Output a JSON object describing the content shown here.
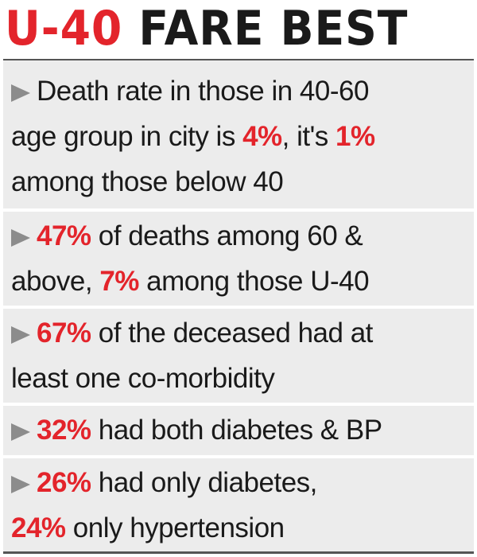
{
  "headline": {
    "accent": "U-40",
    "main": "FARE BEST"
  },
  "items": [
    {
      "lines": [
        {
          "t1": "Death rate in those in 40-60"
        },
        {
          "t1": "age group in city is ",
          "h1": "4%",
          "t2": ", it's ",
          "h2": "1%"
        },
        {
          "t1": "among those below 40"
        }
      ]
    },
    {
      "lines": [
        {
          "h1": "47%",
          "t1": " of deaths among 60 &"
        },
        {
          "t1": "above, ",
          "h1": "7%",
          "t2": " among those U-40"
        }
      ]
    },
    {
      "lines": [
        {
          "h1": "67%",
          "t1": " of the deceased had at"
        },
        {
          "t1": "least one co-morbidity"
        }
      ]
    },
    {
      "lines": [
        {
          "h1": "32%",
          "t1": " had both diabetes & BP"
        }
      ]
    },
    {
      "lines": [
        {
          "h1": "26%",
          "t1": " had only diabetes,"
        },
        {
          "h1": "24%",
          "t1": " only hypertension"
        }
      ]
    }
  ],
  "colors": {
    "accent": "#e3242b",
    "text": "#1a1a1a",
    "panel": "#ececec",
    "arrow": "#8c8c8c"
  }
}
